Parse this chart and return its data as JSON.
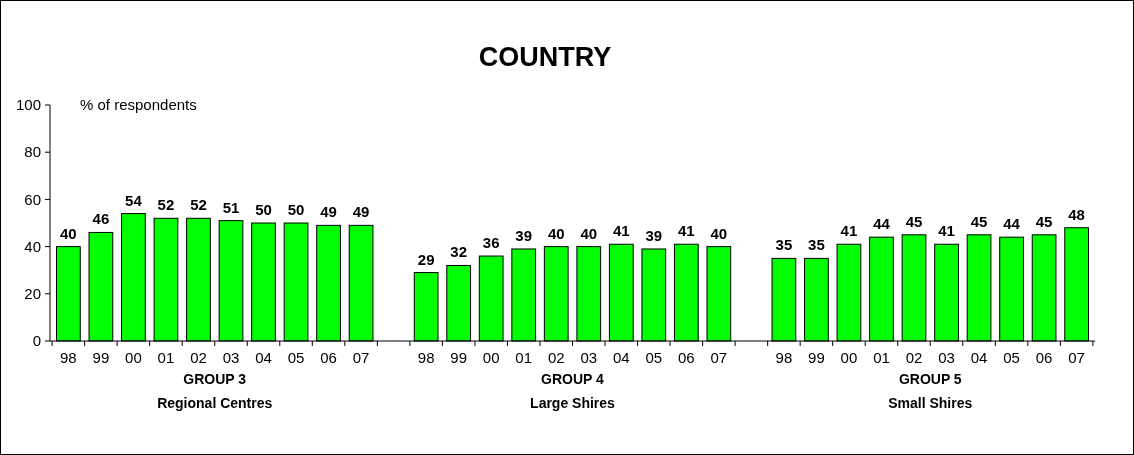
{
  "chart_data": {
    "type": "bar",
    "title": "COUNTRY",
    "ylabel": "% of respondents",
    "categories": [
      "98",
      "99",
      "00",
      "01",
      "02",
      "03",
      "04",
      "05",
      "06",
      "07",
      null,
      "98",
      "99",
      "00",
      "01",
      "02",
      "03",
      "04",
      "05",
      "06",
      "07",
      null,
      "98",
      "99",
      "00",
      "01",
      "02",
      "03",
      "04",
      "05",
      "06",
      "07"
    ],
    "values": [
      40,
      46,
      54,
      52,
      52,
      51,
      50,
      50,
      49,
      49,
      null,
      29,
      32,
      36,
      39,
      40,
      40,
      41,
      39,
      41,
      40,
      null,
      35,
      35,
      41,
      44,
      45,
      41,
      45,
      44,
      45,
      48
    ],
    "color": "#00ff00",
    "ylim": [
      0,
      100
    ],
    "yticks": [
      0,
      20,
      40,
      60,
      80,
      100
    ],
    "grid": false,
    "data_labels": true,
    "annotations": [
      "GROUP 3\nRegional Centres",
      "GROUP 4\nLarge Shires",
      "GROUP 5\nSmall Shires"
    ]
  }
}
